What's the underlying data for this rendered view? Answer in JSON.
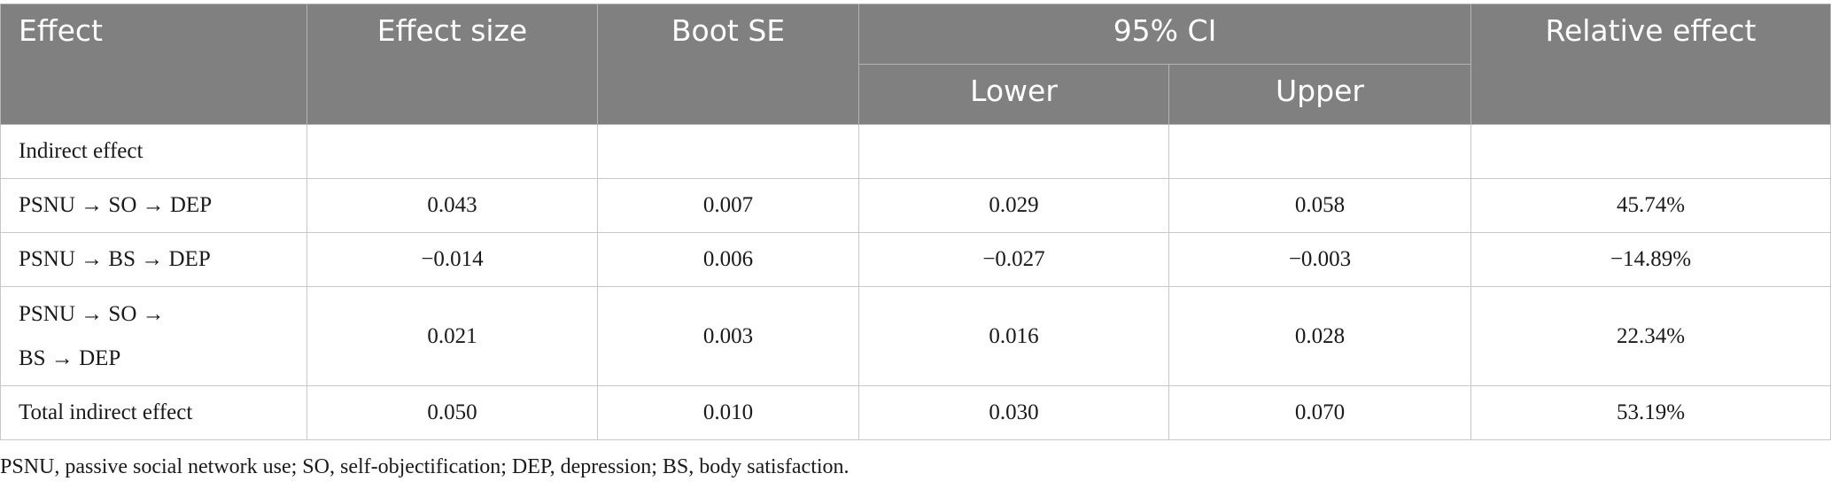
{
  "header": {
    "effect": "Effect",
    "effect_size": "Effect size",
    "boot_se": "Boot SE",
    "ci": "95% CI",
    "lower": "Lower",
    "upper": "Upper",
    "relative_effect": "Relative effect"
  },
  "rows": [
    {
      "label": "Indirect effect",
      "effect_size": "",
      "boot_se": "",
      "lower": "",
      "upper": "",
      "relative": ""
    },
    {
      "label": "PSNU → SO → DEP",
      "effect_size": "0.043",
      "boot_se": "0.007",
      "lower": "0.029",
      "upper": "0.058",
      "relative": "45.74%"
    },
    {
      "label": "PSNU → BS → DEP",
      "effect_size": "−0.014",
      "boot_se": "0.006",
      "lower": "−0.027",
      "upper": "−0.003",
      "relative": "−14.89%"
    },
    {
      "label_line1": "PSNU → SO →",
      "label_line2": "BS → DEP",
      "effect_size": "0.021",
      "boot_se": "0.003",
      "lower": "0.016",
      "upper": "0.028",
      "relative": "22.34%"
    },
    {
      "label": "Total indirect effect",
      "effect_size": "0.050",
      "boot_se": "0.010",
      "lower": "0.030",
      "upper": "0.070",
      "relative": "53.19%"
    }
  ],
  "footnote": "PSNU, passive social network use; SO, self-objectification; DEP, depression; BS, body satisfaction.",
  "colors": {
    "header_bg": "#808080",
    "header_text": "#ffffff",
    "border": "#c8c8c8"
  }
}
